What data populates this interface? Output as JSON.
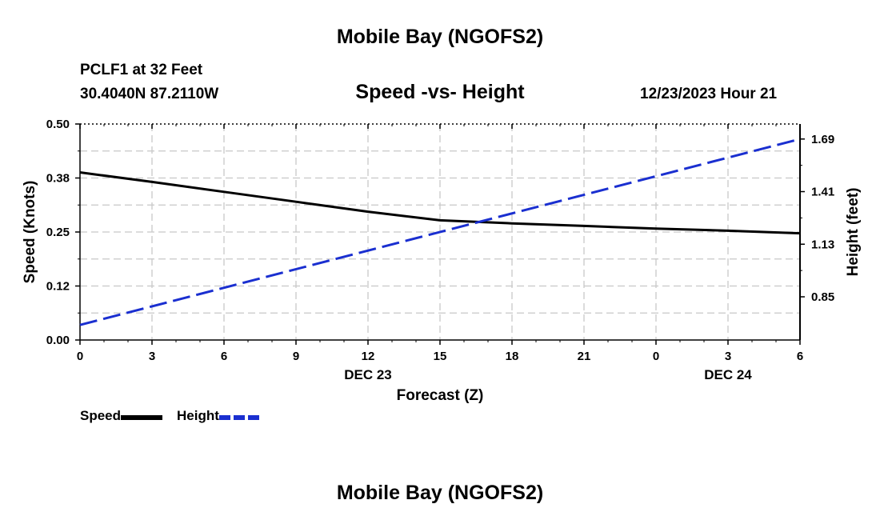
{
  "header": {
    "main_title": "Mobile Bay (NGOFS2)",
    "station": "PCLF1 at 32 Feet",
    "coords": "30.4040N  87.2110W",
    "subtitle": "Speed -vs- Height",
    "datetime": "12/23/2023 Hour 21",
    "footer_title": "Mobile Bay (NGOFS2)"
  },
  "chart_data": {
    "type": "line",
    "title": "Speed -vs- Height",
    "xlabel": "Forecast (Z)",
    "ylabel": "Speed (Knots)",
    "y2label": "Height (feet)",
    "x_ticks": [
      "0",
      "3",
      "6",
      "9",
      "12",
      "15",
      "18",
      "21",
      "0",
      "3",
      "6"
    ],
    "x_date_labels": [
      {
        "label": "DEC 23",
        "x": 12
      },
      {
        "label": "DEC 24",
        "x": 27
      }
    ],
    "xlim": [
      0,
      30
    ],
    "ylim": [
      0,
      0.5
    ],
    "y_ticks": [
      "0.00",
      "0.12",
      "0.25",
      "0.38",
      "0.50"
    ],
    "y2lim": [
      0.62,
      1.77
    ],
    "y2_ticks": [
      "0.85",
      "1.13",
      "1.41",
      "1.69"
    ],
    "series": [
      {
        "name": "Speed",
        "axis": "left",
        "color": "#000000",
        "style": "solid",
        "x": [
          0,
          3,
          6,
          9,
          12,
          15,
          18,
          21,
          24,
          27,
          30
        ],
        "values": [
          0.388,
          0.366,
          0.343,
          0.32,
          0.297,
          0.277,
          0.27,
          0.264,
          0.258,
          0.253,
          0.247
        ]
      },
      {
        "name": "Height",
        "axis": "right",
        "color": "#1a2fd0",
        "style": "dashed",
        "x": [
          0,
          30
        ],
        "values": [
          0.7,
          1.69
        ]
      }
    ],
    "legend": [
      {
        "label": "Speed",
        "color": "#000000",
        "style": "solid"
      },
      {
        "label": "Height",
        "color": "#1a2fd0",
        "style": "dashed"
      }
    ],
    "grid": true
  }
}
